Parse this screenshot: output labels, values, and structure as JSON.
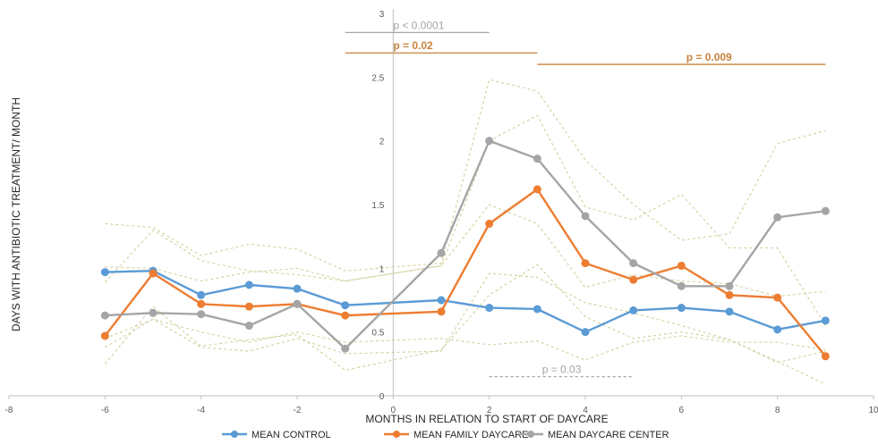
{
  "chart_data": {
    "type": "line",
    "title": "",
    "xlabel": "MONTHS IN RELATION TO START OF DAYCARE",
    "ylabel": "DAYS WITH ANTIBIOTIC TREATMENT/ MONTH",
    "xlim": [
      -8,
      10
    ],
    "ylim": [
      0,
      3
    ],
    "x_ticks": [
      -8,
      -6,
      -4,
      -2,
      0,
      2,
      4,
      6,
      8,
      10
    ],
    "y_ticks": [
      0,
      0.5,
      1,
      1.5,
      2,
      2.5,
      3
    ],
    "x_tick_labels": [
      "-8",
      "-6",
      "-4",
      "-2",
      "0",
      "2",
      "4",
      "6",
      "8",
      "10"
    ],
    "y_tick_labels": [
      "0",
      "0.5",
      "1",
      "1.5",
      "2",
      "2.5",
      "3"
    ],
    "grid": false,
    "legend_position": "bottom",
    "colors": {
      "control": "#5b9bd5",
      "family": "#ed7d31",
      "center": "#a5a5a5",
      "ci_line": "#d6d3a5",
      "annotation_gray": "#a5a5a5",
      "annotation_orange": "#c8823a"
    },
    "series": [
      {
        "name": "MEAN CONTROL",
        "color": "#5b9bd5",
        "x": [
          -6,
          -5,
          -4,
          -3,
          -2,
          -1,
          1,
          2,
          3,
          4,
          5,
          6,
          7,
          8,
          9
        ],
        "y": [
          0.97,
          0.98,
          0.79,
          0.87,
          0.84,
          0.71,
          0.75,
          0.69,
          0.68,
          0.5,
          0.67,
          0.69,
          0.66,
          0.52,
          0.59
        ]
      },
      {
        "name": "MEAN FAMILY DAYCARE",
        "color": "#ed7d31",
        "x": [
          -6,
          -5,
          -4,
          -3,
          -2,
          -1,
          1,
          2,
          3,
          4,
          5,
          6,
          7,
          8,
          9
        ],
        "y": [
          0.47,
          0.96,
          0.72,
          0.7,
          0.72,
          0.63,
          0.66,
          1.35,
          1.62,
          1.04,
          0.91,
          1.02,
          0.79,
          0.77,
          0.31
        ]
      },
      {
        "name": "MEAN DAYCARE CENTER",
        "color": "#a5a5a5",
        "x": [
          -6,
          -5,
          -4,
          -3,
          -2,
          -1,
          1,
          2,
          3,
          4,
          5,
          6,
          7,
          8,
          9
        ],
        "y": [
          0.63,
          0.65,
          0.64,
          0.55,
          0.72,
          0.37,
          1.12,
          2.0,
          1.86,
          1.41,
          1.04,
          0.86,
          0.86,
          1.4,
          1.45
        ]
      }
    ],
    "ci_lines": [
      {
        "x": [
          -6,
          -5,
          -4,
          -3,
          -2,
          -1,
          1,
          2,
          3,
          4,
          5,
          6,
          7,
          8,
          9
        ],
        "y": [
          1.35,
          1.32,
          1.1,
          1.19,
          1.15,
          0.98,
          1.04,
          2.48,
          2.39,
          1.85,
          1.5,
          1.22,
          1.27,
          1.98,
          2.08
        ]
      },
      {
        "x": [
          -6,
          -5,
          -4,
          -3,
          -2,
          -1,
          1,
          2,
          3,
          4,
          5,
          6,
          7,
          8,
          9
        ],
        "y": [
          0.25,
          0.7,
          0.39,
          0.44,
          0.48,
          0.2,
          0.36,
          0.79,
          1.03,
          0.62,
          0.45,
          0.5,
          0.44,
          0.27,
          0.09
        ]
      },
      {
        "x": [
          -6,
          -5,
          -4,
          -3,
          -2,
          -1,
          1,
          2,
          3,
          4,
          5,
          6,
          7,
          8,
          9
        ],
        "y": [
          0.89,
          1.3,
          1.06,
          0.98,
          0.95,
          0.9,
          1.02,
          2.0,
          2.2,
          1.48,
          1.38,
          1.58,
          1.16,
          1.16,
          0.55
        ]
      },
      {
        "x": [
          -6,
          -5,
          -4,
          -3,
          -2,
          -1,
          1,
          2,
          3,
          4,
          5,
          6,
          7,
          8,
          9
        ],
        "y": [
          0.38,
          0.6,
          0.38,
          0.35,
          0.45,
          0.33,
          0.35,
          0.96,
          0.93,
          0.73,
          0.65,
          0.55,
          0.44,
          0.26,
          0.35
        ]
      },
      {
        "x": [
          -6,
          -5,
          -4,
          -3,
          -2,
          -1,
          1,
          2,
          3,
          4,
          5,
          6,
          7,
          8,
          9
        ],
        "y": [
          1.01,
          1.0,
          0.9,
          0.97,
          1.0,
          0.9,
          1.02,
          1.5,
          1.35,
          0.85,
          0.95,
          0.9,
          0.88,
          0.78,
          0.82
        ]
      },
      {
        "x": [
          -6,
          -5,
          -4,
          -3,
          -2,
          -1,
          1,
          2,
          3,
          4,
          5,
          6,
          7,
          8,
          9
        ],
        "y": [
          0.45,
          0.6,
          0.5,
          0.42,
          0.5,
          0.42,
          0.45,
          0.4,
          0.43,
          0.28,
          0.42,
          0.47,
          0.42,
          0.42,
          0.36
        ]
      }
    ],
    "annotations": [
      {
        "text": "p < 0.0001",
        "x1": -1,
        "x2": 2,
        "y": 2.85,
        "color": "#a5a5a5",
        "style": "solid",
        "label_x": 0,
        "bold": false
      },
      {
        "text": "p = 0.02",
        "x1": -1,
        "x2": 3,
        "y": 2.69,
        "color": "#c8823a",
        "style": "solid",
        "label_x": 0,
        "bold": true
      },
      {
        "text": "p = 0.009",
        "x1": 3,
        "x2": 9,
        "y": 2.6,
        "color": "#c8823a",
        "style": "solid",
        "label_x": 6.1,
        "bold": true
      },
      {
        "text": "p = 0.03",
        "x1": 2,
        "x2": 5,
        "y": 0.15,
        "color": "#a5a5a5",
        "style": "dashed",
        "label_x": 3.1,
        "bold": false
      }
    ]
  }
}
